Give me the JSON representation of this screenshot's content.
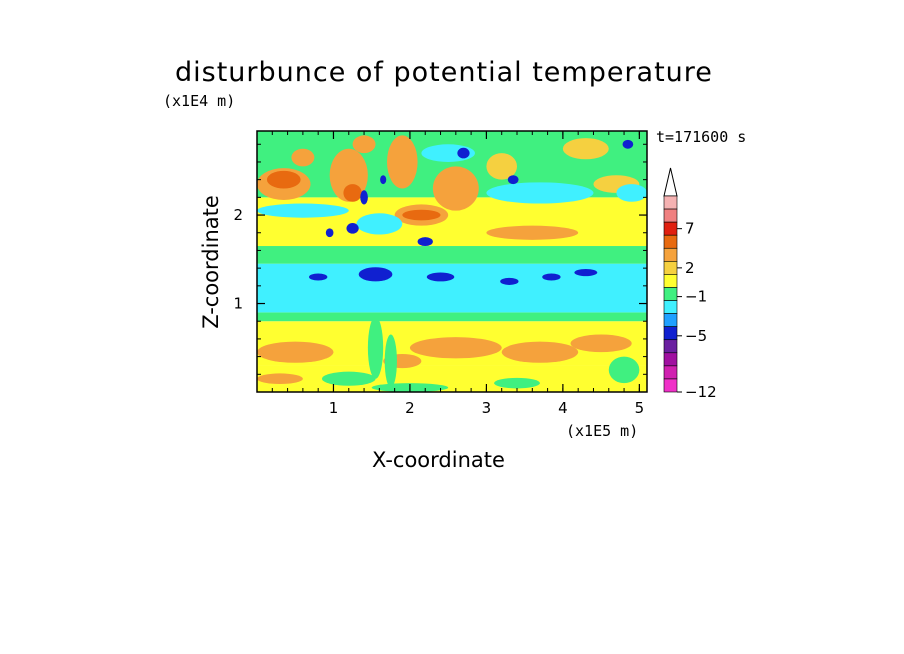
{
  "chart_data": {
    "type": "heatmap",
    "title": "disturbunce of potential temperature",
    "xlabel": "X-coordinate",
    "ylabel": "Z-coordinate",
    "x_unit": "(x1E5 m)",
    "z_unit": "(x1E4 m)",
    "time_label": "t=171600 s",
    "xlim": [
      0,
      5.1
    ],
    "ylim": [
      0,
      2.95
    ],
    "x_ticks": [
      "1",
      "2",
      "3",
      "4",
      "5"
    ],
    "x_tick_values": [
      1,
      2,
      3,
      4,
      5
    ],
    "y_ticks": [
      "1",
      "2"
    ],
    "y_tick_values": [
      1,
      2
    ],
    "colorbar": {
      "labels": [
        "7",
        "2",
        "−1",
        "−5",
        "−12"
      ],
      "label_levels": [
        7,
        2,
        -1,
        -5,
        -12
      ],
      "colors_top_to_bottom": [
        "#f5b2b2",
        "#f08080",
        "#e02010",
        "#e86a10",
        "#f5a23c",
        "#f5d040",
        "#ffff30",
        "#40f080",
        "#40f0ff",
        "#20a0ff",
        "#1020d0",
        "#6a20a0",
        "#a010a0",
        "#d020b0",
        "#f030c8"
      ]
    },
    "bands": [
      {
        "z": [
          0.0,
          0.3
        ],
        "color": "#ffff30"
      },
      {
        "z": [
          0.3,
          0.8
        ],
        "color": "#ffff30"
      },
      {
        "z": [
          0.8,
          0.9
        ],
        "color": "#40f080"
      },
      {
        "z": [
          0.9,
          1.45
        ],
        "color": "#40f0ff"
      },
      {
        "z": [
          1.45,
          1.65
        ],
        "color": "#40f080"
      },
      {
        "z": [
          1.65,
          2.2
        ],
        "color": "#ffff30"
      },
      {
        "z": [
          2.2,
          2.95
        ],
        "color": "#40f080"
      }
    ]
  }
}
